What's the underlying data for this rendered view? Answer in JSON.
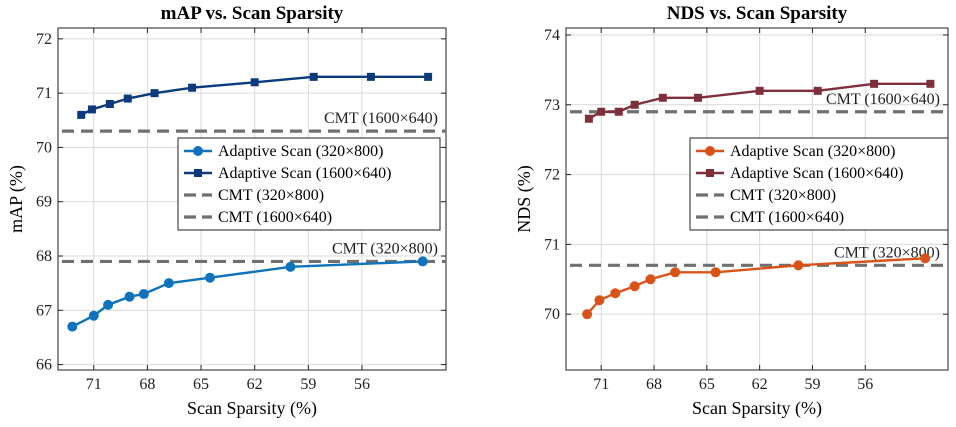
{
  "chart_data": [
    {
      "id": "map",
      "type": "line",
      "title": "mAP vs. Scan Sparsity",
      "xlabel": "Scan Sparsity (%)",
      "ylabel": "mAP (%)",
      "x_inverted": true,
      "xlim": [
        73.0,
        51.3
      ],
      "ylim": [
        65.9,
        72.2
      ],
      "xticks": [
        71,
        68,
        65,
        62,
        59,
        56
      ],
      "yticks": [
        66,
        67,
        68,
        69,
        70,
        71,
        72
      ],
      "series": [
        {
          "name": "Adaptive Scan (320×800)",
          "marker": "circle",
          "color": "#0e72bd",
          "x": [
            72.2,
            71.0,
            70.2,
            69.0,
            68.2,
            66.8,
            64.5,
            60.0,
            52.6
          ],
          "y": [
            66.7,
            66.9,
            67.1,
            67.25,
            67.3,
            67.5,
            67.6,
            67.8,
            67.9
          ]
        },
        {
          "name": "Adaptive Scan (1600×640)",
          "marker": "square",
          "color": "#0b3b7d",
          "x": [
            71.7,
            71.1,
            70.1,
            69.1,
            67.6,
            65.5,
            62.0,
            58.7,
            55.5,
            52.3
          ],
          "y": [
            70.6,
            70.7,
            70.8,
            70.9,
            71.0,
            71.1,
            71.2,
            71.3,
            71.3,
            71.3
          ]
        }
      ],
      "baselines": [
        {
          "name": "CMT (320×800)",
          "value": 67.9,
          "label": "CMT (320×800)"
        },
        {
          "name": "CMT (1600×640)",
          "value": 70.3,
          "label": "CMT (1600×640)"
        }
      ],
      "legend": [
        "Adaptive Scan (320×800)",
        "Adaptive Scan (1600×640)",
        "CMT (320×800)",
        "CMT (1600×640)"
      ],
      "legend_loc": "center-right",
      "grid": true
    },
    {
      "id": "nds",
      "type": "line",
      "title": "NDS vs. Scan Sparsity",
      "xlabel": "Scan Sparsity (%)",
      "ylabel": "NDS (%)",
      "x_inverted": true,
      "xlim": [
        73.0,
        51.3
      ],
      "ylim": [
        69.2,
        74.1
      ],
      "xticks": [
        71,
        68,
        65,
        62,
        59,
        56
      ],
      "yticks": [
        70,
        71,
        72,
        73,
        74
      ],
      "series": [
        {
          "name": "Adaptive Scan (320×800)",
          "marker": "circle",
          "color": "#d95319",
          "x": [
            71.8,
            71.1,
            70.2,
            69.1,
            68.2,
            66.8,
            64.5,
            59.8,
            52.6
          ],
          "y": [
            70.0,
            70.2,
            70.3,
            70.4,
            70.5,
            70.6,
            70.6,
            70.7,
            70.8
          ]
        },
        {
          "name": "Adaptive Scan (1600×640)",
          "marker": "square",
          "color": "#7e2f3b",
          "x": [
            71.7,
            71.0,
            70.0,
            69.1,
            67.5,
            65.5,
            62.0,
            58.7,
            55.5,
            52.3
          ],
          "y": [
            72.8,
            72.9,
            72.9,
            73.0,
            73.1,
            73.1,
            73.2,
            73.2,
            73.3,
            73.3
          ]
        }
      ],
      "baselines": [
        {
          "name": "CMT (320×800)",
          "value": 70.7,
          "label": "CMT (320×800)"
        },
        {
          "name": "CMT (1600×640)",
          "value": 72.9,
          "label": "CMT (1600×640)"
        }
      ],
      "legend": [
        "Adaptive Scan (320×800)",
        "Adaptive Scan (1600×640)",
        "CMT (320×800)",
        "CMT (1600×640)"
      ],
      "legend_loc": "center-right",
      "grid": true
    }
  ],
  "colors": {
    "baseline": "#707070"
  }
}
